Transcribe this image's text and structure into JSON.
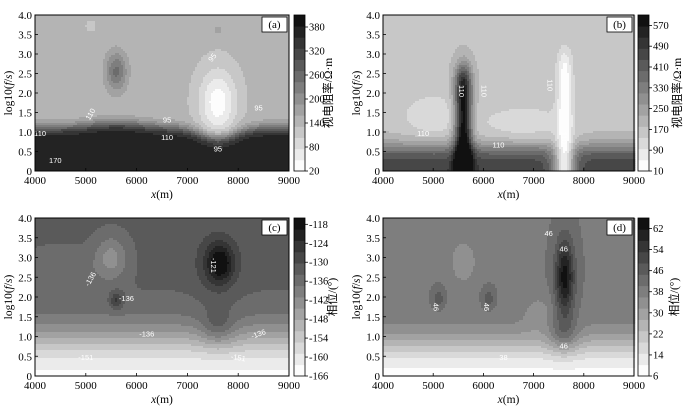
{
  "chart_data": [
    {
      "type": "contour",
      "title": "(a)",
      "xlabel": "x(m)",
      "ylabel": "log10(f/s)",
      "xlim": [
        4000,
        9000
      ],
      "ylim": [
        0,
        4
      ],
      "xticks": [
        "4000",
        "5000",
        "6000",
        "7000",
        "8000",
        "9000"
      ],
      "yticks": [
        "0",
        "0.5",
        "1.0",
        "1.5",
        "2.0",
        "2.5",
        "3.0",
        "3.5",
        "4.0"
      ],
      "colorbar": {
        "label": "视电阻率/Ω·m",
        "ticks": [
          "20",
          "80",
          "140",
          "200",
          "260",
          "320",
          "380"
        ],
        "range": [
          20,
          410
        ]
      },
      "contour_labels": [
        "110",
        "170",
        "110",
        "95",
        "110",
        "95",
        "95",
        "95"
      ],
      "background": 140,
      "features": [
        {
          "x": 5600,
          "y": 2.55,
          "value": 250
        },
        {
          "x": 7600,
          "y": 1.75,
          "value": 30
        },
        {
          "x": 5100,
          "y": 3.7,
          "value": 110
        }
      ]
    },
    {
      "type": "contour",
      "title": "(b)",
      "xlabel": "x(m)",
      "ylabel": "log10(f/s)",
      "xlim": [
        4000,
        9000
      ],
      "ylim": [
        0,
        4
      ],
      "xticks": [
        "4000",
        "5000",
        "6000",
        "7000",
        "8000",
        "9000"
      ],
      "yticks": [
        "0",
        "0.5",
        "1.0",
        "1.5",
        "2.0",
        "2.5",
        "3.0",
        "3.5",
        "4.0"
      ],
      "colorbar": {
        "label": "视电阻率/Ω·m",
        "ticks": [
          "10",
          "90",
          "170",
          "250",
          "330",
          "410",
          "490",
          "570"
        ],
        "range": [
          10,
          610
        ]
      },
      "contour_labels": [
        "110",
        "110",
        "110",
        "110",
        "110",
        "110"
      ],
      "background": 170,
      "features": [
        {
          "x": 5600,
          "y": 1.5,
          "value": 400
        },
        {
          "x": 7600,
          "y": 1.7,
          "value": 20
        }
      ]
    },
    {
      "type": "contour",
      "title": "(c)",
      "xlabel": "x(m)",
      "ylabel": "log10(f/s)",
      "xlim": [
        4000,
        9000
      ],
      "ylim": [
        0,
        4
      ],
      "xticks": [
        "4000",
        "5000",
        "6000",
        "7000",
        "8000",
        "9000"
      ],
      "yticks": [
        "0",
        "0.5",
        "1.0",
        "1.5",
        "2.0",
        "2.5",
        "3.0",
        "3.5",
        "4.0"
      ],
      "colorbar": {
        "label": "相位/(°)",
        "ticks": [
          "-118",
          "-124",
          "-130",
          "-136",
          "-142",
          "-148",
          "-154",
          "-160",
          "-166"
        ],
        "range": [
          -166,
          -116
        ]
      },
      "contour_labels": [
        "-136",
        "-136",
        "-121",
        "-136",
        "-136",
        "-151",
        "-151"
      ],
      "background": -133,
      "features": [
        {
          "x": 7600,
          "y": 2.85,
          "value": -119
        },
        {
          "x": 5500,
          "y": 3.0,
          "value": -142
        },
        {
          "x": 5600,
          "y": 1.9,
          "value": -126
        }
      ]
    },
    {
      "type": "contour",
      "title": "(d)",
      "xlabel": "x(m)",
      "ylabel": "log10(f/s)",
      "xlim": [
        4000,
        9000
      ],
      "ylim": [
        0,
        4
      ],
      "xticks": [
        "4000",
        "5000",
        "6000",
        "7000",
        "8000",
        "9000"
      ],
      "yticks": [
        "0",
        "0.5",
        "1.0",
        "1.5",
        "2.0",
        "2.5",
        "3.0",
        "3.5",
        "4.0"
      ],
      "colorbar": {
        "label": "相位/(°)",
        "ticks": [
          "6",
          "14",
          "22",
          "30",
          "38",
          "46",
          "54",
          "62"
        ],
        "range": [
          6,
          66
        ]
      },
      "contour_labels": [
        "46",
        "46",
        "46",
        "46",
        "46",
        "38"
      ],
      "background": 40,
      "features": [
        {
          "x": 7600,
          "y": 2.5,
          "value": 64
        },
        {
          "x": 5600,
          "y": 2.9,
          "value": 32
        },
        {
          "x": 5100,
          "y": 1.95,
          "value": 48
        },
        {
          "x": 6100,
          "y": 1.95,
          "value": 48
        }
      ]
    }
  ]
}
